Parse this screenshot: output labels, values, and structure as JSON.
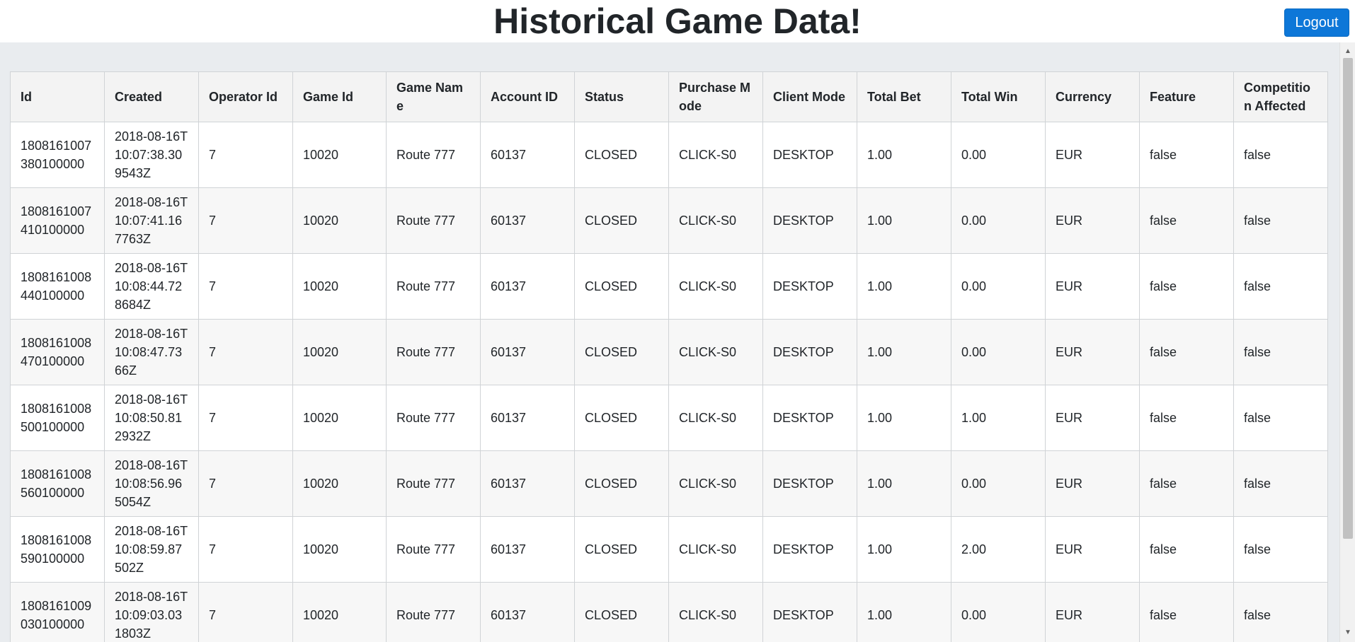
{
  "header": {
    "title": "Historical Game Data!",
    "logout_label": "Logout"
  },
  "table": {
    "columns": [
      "Id",
      "Created",
      "Operator Id",
      "Game Id",
      "Game Name",
      "Account ID",
      "Status",
      "Purchase Mode",
      "Client Mode",
      "Total Bet",
      "Total Win",
      "Currency",
      "Feature",
      "Competition Affected"
    ],
    "rows": [
      [
        "1808161007380100000",
        "2018-08-16T10:07:38.309543Z",
        "7",
        "10020",
        "Route 777",
        "60137",
        "CLOSED",
        "CLICK-S0",
        "DESKTOP",
        "1.00",
        "0.00",
        "EUR",
        "false",
        "false"
      ],
      [
        "1808161007410100000",
        "2018-08-16T10:07:41.167763Z",
        "7",
        "10020",
        "Route 777",
        "60137",
        "CLOSED",
        "CLICK-S0",
        "DESKTOP",
        "1.00",
        "0.00",
        "EUR",
        "false",
        "false"
      ],
      [
        "1808161008440100000",
        "2018-08-16T10:08:44.728684Z",
        "7",
        "10020",
        "Route 777",
        "60137",
        "CLOSED",
        "CLICK-S0",
        "DESKTOP",
        "1.00",
        "0.00",
        "EUR",
        "false",
        "false"
      ],
      [
        "1808161008470100000",
        "2018-08-16T10:08:47.7366Z",
        "7",
        "10020",
        "Route 777",
        "60137",
        "CLOSED",
        "CLICK-S0",
        "DESKTOP",
        "1.00",
        "0.00",
        "EUR",
        "false",
        "false"
      ],
      [
        "1808161008500100000",
        "2018-08-16T10:08:50.812932Z",
        "7",
        "10020",
        "Route 777",
        "60137",
        "CLOSED",
        "CLICK-S0",
        "DESKTOP",
        "1.00",
        "1.00",
        "EUR",
        "false",
        "false"
      ],
      [
        "1808161008560100000",
        "2018-08-16T10:08:56.965054Z",
        "7",
        "10020",
        "Route 777",
        "60137",
        "CLOSED",
        "CLICK-S0",
        "DESKTOP",
        "1.00",
        "0.00",
        "EUR",
        "false",
        "false"
      ],
      [
        "1808161008590100000",
        "2018-08-16T10:08:59.87502Z",
        "7",
        "10020",
        "Route 777",
        "60137",
        "CLOSED",
        "CLICK-S0",
        "DESKTOP",
        "1.00",
        "2.00",
        "EUR",
        "false",
        "false"
      ],
      [
        "1808161009030100000",
        "2018-08-16T10:09:03.031803Z",
        "7",
        "10020",
        "Route 777",
        "60137",
        "CLOSED",
        "CLICK-S0",
        "DESKTOP",
        "1.00",
        "0.00",
        "EUR",
        "false",
        "false"
      ]
    ]
  }
}
